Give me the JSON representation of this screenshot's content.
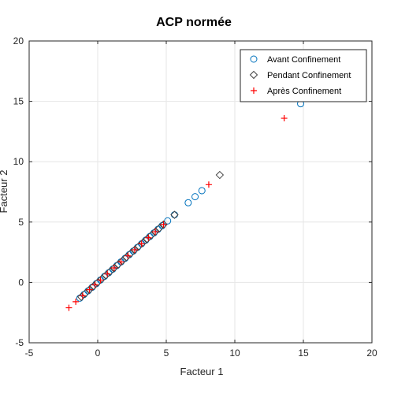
{
  "chart_data": {
    "type": "scatter",
    "title": "ACP normée",
    "xlabel": "Facteur 1",
    "ylabel": "Facteur 2",
    "xlim": [
      -5,
      20
    ],
    "ylim": [
      -5,
      20
    ],
    "xticks": [
      -5,
      0,
      5,
      10,
      15,
      20
    ],
    "yticks": [
      -5,
      0,
      5,
      10,
      15,
      20
    ],
    "grid": true,
    "legend_position": "top-right",
    "series": [
      {
        "name": "Avant Confinement",
        "marker": "circle",
        "color": "#0072BD",
        "x": [
          -1.3,
          -1.0,
          -0.7,
          -0.4,
          -0.1,
          0.2,
          0.5,
          0.8,
          1.1,
          1.4,
          1.7,
          2.0,
          2.3,
          2.6,
          2.9,
          3.2,
          3.5,
          3.8,
          4.1,
          4.4,
          4.7,
          5.1,
          5.6,
          6.6,
          7.1,
          7.6,
          14.8
        ],
        "y": [
          -1.3,
          -1.0,
          -0.7,
          -0.4,
          -0.1,
          0.2,
          0.5,
          0.8,
          1.1,
          1.4,
          1.7,
          2.0,
          2.3,
          2.6,
          2.9,
          3.2,
          3.5,
          3.8,
          4.1,
          4.4,
          4.7,
          5.1,
          5.6,
          6.6,
          7.1,
          7.6,
          14.8
        ]
      },
      {
        "name": "Pendant Confinement",
        "marker": "diamond",
        "color": "#444444",
        "x": [
          -1.2,
          -0.9,
          -0.6,
          -0.3,
          0.0,
          0.3,
          0.6,
          0.9,
          1.2,
          1.5,
          1.8,
          2.1,
          2.4,
          2.7,
          3.0,
          3.3,
          3.6,
          3.9,
          4.2,
          4.5,
          4.8,
          5.6,
          8.9
        ],
        "y": [
          -1.2,
          -0.9,
          -0.6,
          -0.3,
          0.0,
          0.3,
          0.6,
          0.9,
          1.2,
          1.5,
          1.8,
          2.1,
          2.4,
          2.7,
          3.0,
          3.3,
          3.6,
          3.9,
          4.2,
          4.5,
          4.8,
          5.6,
          8.9
        ]
      },
      {
        "name": "Après Confinement",
        "marker": "plus",
        "color": "#FF0000",
        "x": [
          -2.1,
          -1.6,
          -1.1,
          -0.6,
          -0.2,
          0.2,
          0.7,
          1.2,
          1.7,
          2.2,
          2.7,
          3.2,
          3.7,
          4.2,
          4.8,
          8.1,
          13.6
        ],
        "y": [
          -2.1,
          -1.6,
          -1.1,
          -0.6,
          -0.2,
          0.2,
          0.7,
          1.2,
          1.7,
          2.2,
          2.7,
          3.2,
          3.7,
          4.2,
          4.8,
          8.1,
          13.6
        ]
      }
    ]
  }
}
